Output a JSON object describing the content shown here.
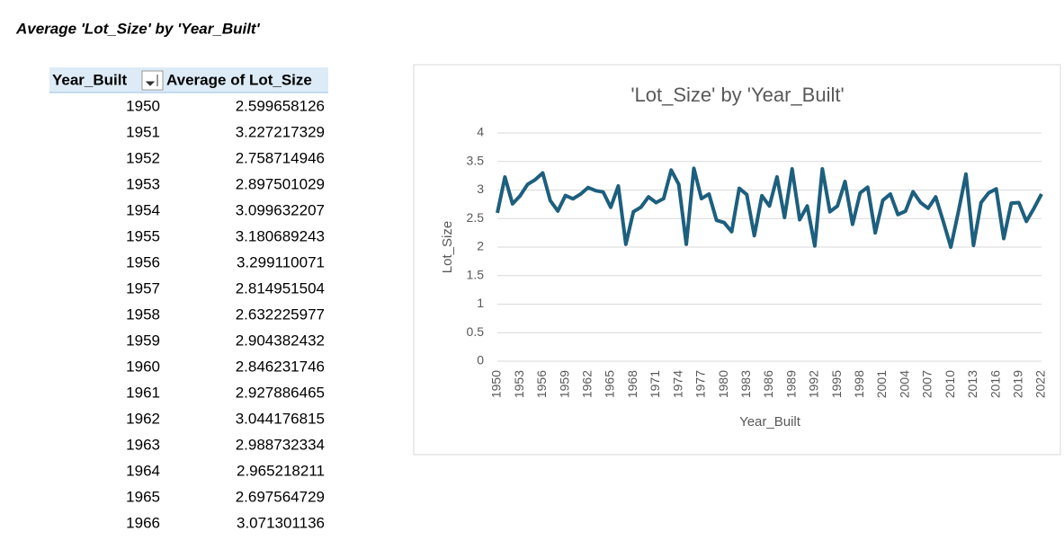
{
  "sheet_title": "Average 'Lot_Size' by 'Year_Built'",
  "table": {
    "header": [
      "Year_Built",
      "Average of Lot_Size"
    ],
    "rows": [
      [
        1950,
        2.599658126
      ],
      [
        1951,
        3.227217329
      ],
      [
        1952,
        2.758714946
      ],
      [
        1953,
        2.897501029
      ],
      [
        1954,
        3.099632207
      ],
      [
        1955,
        3.180689243
      ],
      [
        1956,
        3.299110071
      ],
      [
        1957,
        2.814951504
      ],
      [
        1958,
        2.632225977
      ],
      [
        1959,
        2.904382432
      ],
      [
        1960,
        2.846231746
      ],
      [
        1961,
        2.927886465
      ],
      [
        1962,
        3.044176815
      ],
      [
        1963,
        2.988732334
      ],
      [
        1964,
        2.965218211
      ],
      [
        1965,
        2.697564729
      ],
      [
        1966,
        3.071301136
      ]
    ]
  },
  "chart_data": {
    "type": "line",
    "title": "'Lot_Size' by 'Year_Built'",
    "x_label": "Year_Built",
    "y_label": "Lot_Size",
    "color": "#1d5f7e",
    "grid": true,
    "categories": [
      "1950",
      null,
      null,
      "1953",
      null,
      null,
      "1956",
      null,
      null,
      "1959",
      null,
      null,
      "1962",
      null,
      null,
      "1965",
      null,
      null,
      "1968",
      null,
      null,
      "1971",
      null,
      null,
      "1974",
      null,
      null,
      "1977",
      null,
      null,
      "1980",
      null,
      null,
      "1983",
      null,
      null,
      "1986",
      null,
      null,
      "1989",
      null,
      null,
      "1992",
      null,
      null,
      "1995",
      null,
      null,
      "1998",
      null,
      null,
      "2001",
      null,
      null,
      "2004",
      null,
      null,
      "2007",
      null,
      null,
      "2010",
      null,
      null,
      "2013",
      null,
      null,
      "2016",
      null,
      null,
      "2019",
      null,
      null,
      "2022"
    ],
    "values": [
      2.599658126,
      3.227217329,
      2.758714946,
      2.897501029,
      3.099632207,
      3.180689243,
      3.299110071,
      2.814951504,
      2.632225977,
      2.904382432,
      2.846231746,
      2.927886465,
      3.044176815,
      2.988732334,
      2.965218211,
      2.697564729,
      3.071301136,
      2.05,
      2.62,
      2.7,
      2.88,
      2.78,
      2.85,
      3.35,
      3.1,
      2.05,
      3.38,
      2.85,
      2.93,
      2.47,
      2.43,
      2.27,
      3.03,
      2.92,
      2.2,
      2.9,
      2.72,
      3.23,
      2.52,
      3.37,
      2.48,
      2.72,
      2.02,
      3.37,
      2.62,
      2.72,
      3.15,
      2.4,
      2.95,
      3.05,
      2.25,
      2.82,
      2.93,
      2.57,
      2.63,
      2.97,
      2.78,
      2.68,
      2.88,
      2.45,
      2.0,
      2.62,
      3.28,
      2.03,
      2.78,
      2.95,
      3.02,
      2.15,
      2.77,
      2.78,
      2.45,
      2.68,
      2.93
    ],
    "ylim": [
      0,
      4
    ],
    "yticks": [
      0,
      0.5,
      1,
      1.5,
      2,
      2.5,
      3,
      3.5,
      4
    ]
  }
}
